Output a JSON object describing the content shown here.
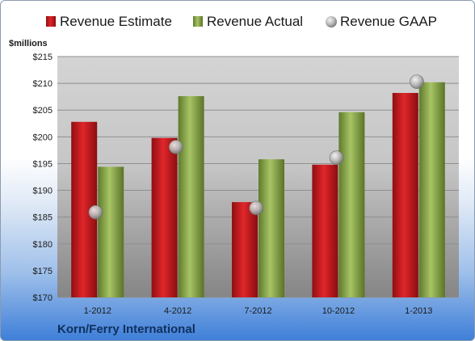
{
  "chart_data": {
    "type": "bar",
    "categories": [
      "1-2012",
      "4-2012",
      "7-2012",
      "10-2012",
      "1-2013"
    ],
    "series": [
      {
        "name": "Revenue Estimate",
        "kind": "bar",
        "color": "#c8171b",
        "values": [
          202.8,
          199.8,
          187.8,
          194.8,
          208.2
        ]
      },
      {
        "name": "Revenue Actual",
        "kind": "bar",
        "color": "#8fae4e",
        "values": [
          194.4,
          207.6,
          195.8,
          204.6,
          210.2
        ]
      },
      {
        "name": "Revenue GAAP",
        "kind": "marker",
        "color": "#b9b9b9",
        "values": [
          185.9,
          198.1,
          186.7,
          196.1,
          210.3
        ]
      }
    ],
    "ylabel": "$millions",
    "ylim": [
      170,
      215
    ],
    "yticks": [
      "$170",
      "$175",
      "$180",
      "$185",
      "$190",
      "$195",
      "$200",
      "$205",
      "$210",
      "$215"
    ],
    "grid": true,
    "legend_position": "top"
  },
  "footer": {
    "company": "Korn/Ferry International"
  }
}
